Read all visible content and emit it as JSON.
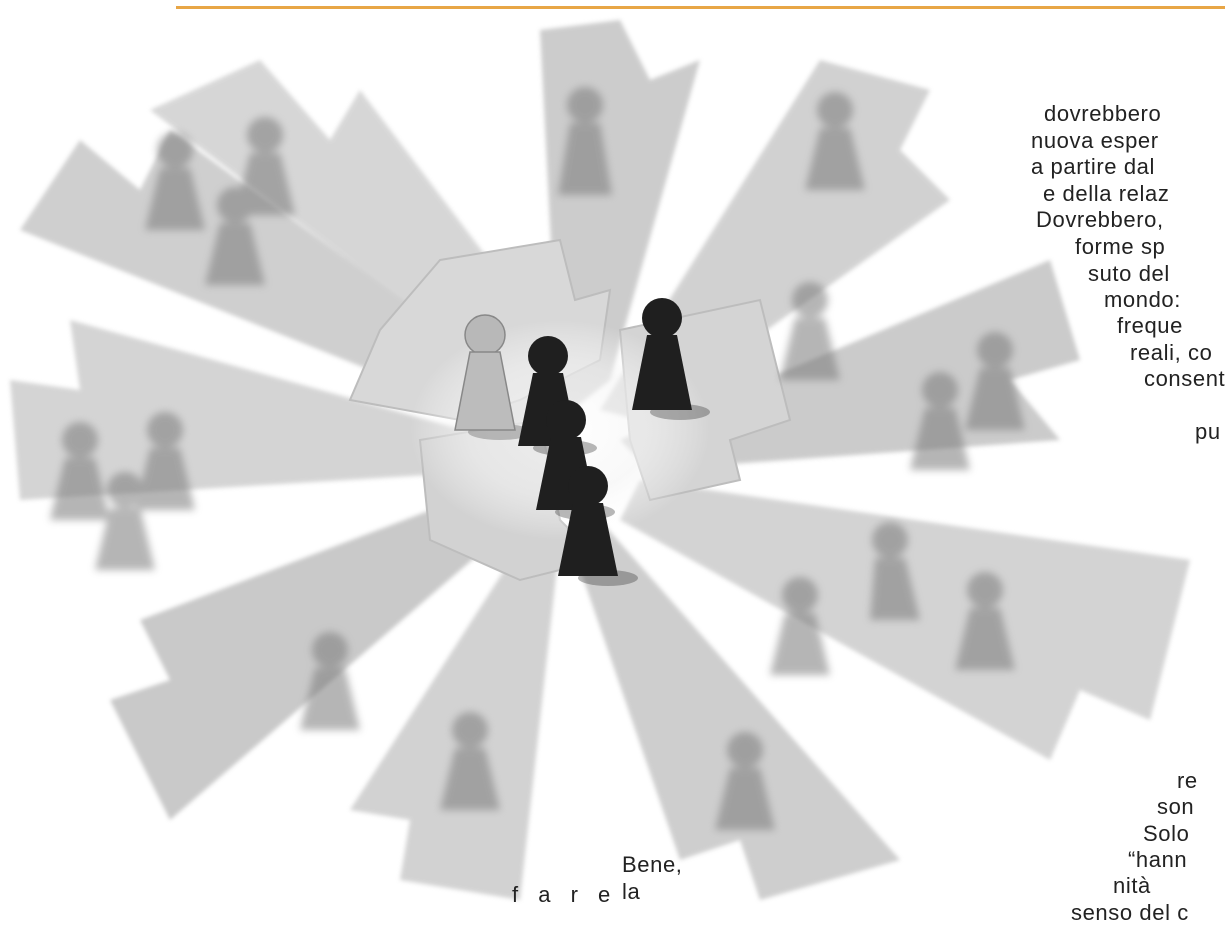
{
  "page": {
    "accent_color": "#e8a646"
  },
  "illustration": {
    "icon": "puzzle-pieces-with-pawns-icon",
    "palette": [
      "#c8c8c8",
      "#9a9a9a",
      "#1c1c1c"
    ]
  },
  "text_right": [
    "dovrebbero",
    "nuova esper",
    "a partire dal",
    "e della relaz",
    "Dovrebbero,",
    "forme sp",
    "suto del",
    "mondo:",
    "freque",
    "reali, co",
    "consent",
    "pu",
    "re",
    "son",
    "Solo",
    "“hann",
    "nità",
    "senso del c"
  ],
  "text_bottom": [
    "f a r e",
    "Bene,",
    "la"
  ]
}
